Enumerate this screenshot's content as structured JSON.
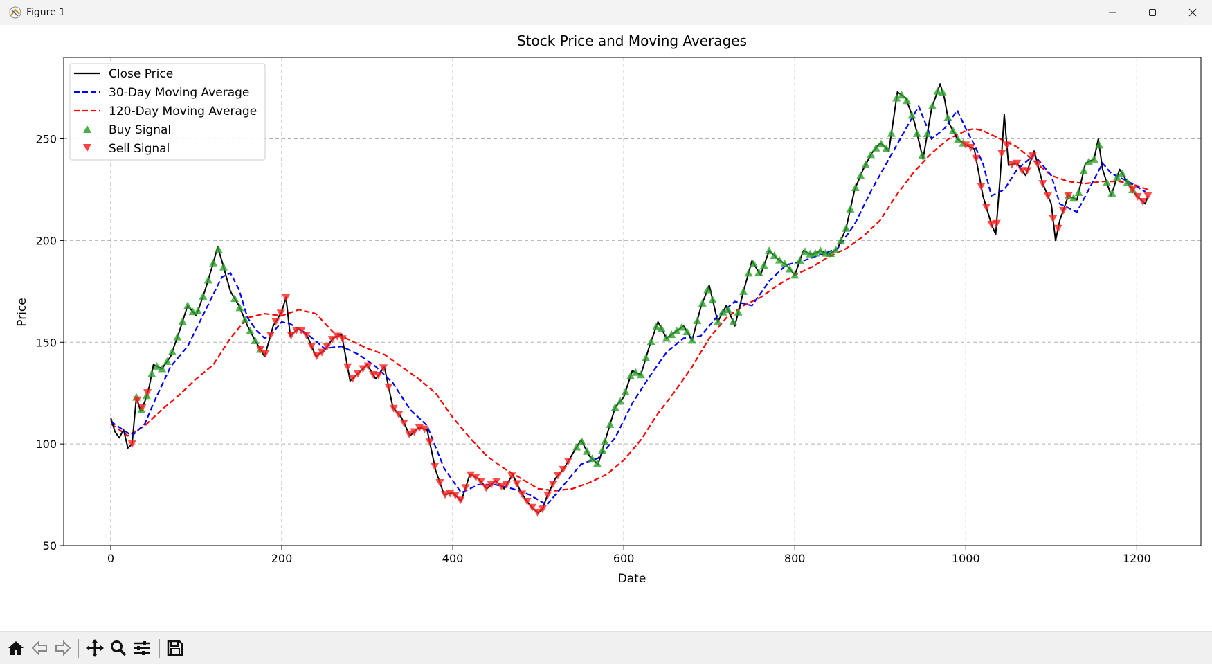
{
  "window": {
    "title": "Figure 1",
    "icons": [
      "app-icon",
      "minimize-icon",
      "maximize-icon",
      "close-icon"
    ]
  },
  "toolbar": {
    "buttons": [
      "home-icon",
      "back-icon",
      "forward-icon",
      "pan-icon",
      "zoom-icon",
      "configure-icon",
      "save-icon"
    ]
  },
  "chart_data": {
    "type": "line",
    "title": "Stock Price and Moving Averages",
    "xlabel": "Date",
    "ylabel": "Price",
    "xlim": [
      -55,
      1275
    ],
    "ylim": [
      50,
      290
    ],
    "xticks": [
      0,
      200,
      400,
      600,
      800,
      1000,
      1200
    ],
    "yticks": [
      50,
      100,
      150,
      200,
      250
    ],
    "xtick_labels": [
      "0",
      "200",
      "400",
      "600",
      "800",
      "1000",
      "1200"
    ],
    "ytick_labels": [
      "50",
      "100",
      "150",
      "200",
      "250"
    ],
    "grid": true,
    "legend_location": "upper left",
    "legend": [
      "Close Price",
      "30-Day Moving Average",
      "120-Day Moving Average",
      "Buy Signal",
      "Sell Signal"
    ],
    "colors": {
      "close": "#000000",
      "ma30": "#0000ff",
      "ma120": "#ff0000",
      "buy": "#2ca02c",
      "sell": "#ff2020"
    },
    "close_price": {
      "x": [
        0,
        5,
        10,
        15,
        20,
        25,
        30,
        35,
        40,
        45,
        50,
        60,
        70,
        80,
        90,
        100,
        110,
        120,
        125,
        130,
        140,
        150,
        160,
        170,
        180,
        190,
        200,
        205,
        210,
        220,
        230,
        240,
        250,
        260,
        270,
        280,
        290,
        300,
        310,
        320,
        330,
        340,
        350,
        360,
        370,
        380,
        390,
        400,
        410,
        420,
        430,
        440,
        450,
        460,
        470,
        480,
        490,
        500,
        505,
        510,
        520,
        530,
        540,
        550,
        560,
        570,
        580,
        590,
        600,
        610,
        620,
        630,
        640,
        650,
        660,
        670,
        680,
        690,
        700,
        710,
        720,
        730,
        740,
        750,
        760,
        770,
        780,
        790,
        800,
        810,
        820,
        830,
        840,
        850,
        860,
        870,
        880,
        890,
        900,
        910,
        920,
        930,
        940,
        950,
        960,
        970,
        975,
        980,
        990,
        1000,
        1010,
        1020,
        1030,
        1035,
        1040,
        1045,
        1050,
        1060,
        1070,
        1080,
        1090,
        1100,
        1105,
        1110,
        1120,
        1130,
        1140,
        1150,
        1155,
        1160,
        1170,
        1180,
        1190,
        1200,
        1210,
        1213
      ],
      "y": [
        113,
        106,
        103,
        107,
        98,
        100,
        123,
        116,
        121,
        128,
        139,
        137,
        143,
        155,
        168,
        163,
        175,
        189,
        197,
        190,
        175,
        168,
        158,
        150,
        143,
        158,
        165,
        172,
        153,
        157,
        153,
        143,
        146,
        152,
        154,
        131,
        135,
        139,
        132,
        138,
        118,
        113,
        104,
        108,
        107,
        87,
        75,
        76,
        72,
        85,
        83,
        78,
        82,
        78,
        85,
        76,
        70,
        66,
        68,
        74,
        83,
        88,
        95,
        102,
        94,
        90,
        104,
        118,
        123,
        136,
        134,
        148,
        160,
        152,
        155,
        158,
        151,
        167,
        178,
        160,
        168,
        158,
        175,
        190,
        183,
        195,
        191,
        188,
        183,
        195,
        193,
        195,
        193,
        196,
        206,
        225,
        235,
        243,
        248,
        244,
        273,
        270,
        258,
        240,
        265,
        277,
        270,
        258,
        250,
        247,
        245,
        222,
        208,
        203,
        230,
        262,
        237,
        238,
        232,
        244,
        228,
        218,
        200,
        210,
        222,
        220,
        238,
        240,
        250,
        235,
        222,
        235,
        228,
        222,
        218,
        222
      ]
    },
    "ma30": {
      "x": [
        0,
        25,
        40,
        50,
        70,
        90,
        110,
        130,
        140,
        150,
        160,
        170,
        180,
        190,
        200,
        210,
        230,
        250,
        270,
        290,
        310,
        330,
        350,
        370,
        390,
        410,
        430,
        450,
        470,
        490,
        510,
        530,
        550,
        570,
        590,
        610,
        630,
        650,
        670,
        690,
        710,
        730,
        750,
        770,
        790,
        810,
        830,
        850,
        870,
        890,
        910,
        930,
        945,
        960,
        975,
        990,
        1000,
        1010,
        1020,
        1030,
        1045,
        1060,
        1080,
        1100,
        1110,
        1130,
        1150,
        1160,
        1170,
        1190,
        1210
      ],
      "y": [
        111,
        104,
        110,
        120,
        138,
        148,
        165,
        182,
        184,
        176,
        162,
        156,
        152,
        155,
        160,
        159,
        154,
        147,
        148,
        144,
        138,
        130,
        117,
        109,
        88,
        76,
        80,
        80,
        78,
        75,
        70,
        80,
        90,
        93,
        103,
        120,
        133,
        145,
        152,
        153,
        163,
        170,
        168,
        180,
        188,
        190,
        193,
        196,
        208,
        225,
        240,
        255,
        266,
        250,
        255,
        264,
        255,
        247,
        238,
        222,
        225,
        235,
        242,
        232,
        218,
        214,
        230,
        238,
        233,
        229,
        224
      ]
    },
    "ma120": {
      "x": [
        0,
        20,
        40,
        60,
        80,
        100,
        120,
        140,
        160,
        180,
        200,
        220,
        240,
        260,
        280,
        300,
        320,
        340,
        360,
        380,
        400,
        420,
        440,
        460,
        480,
        500,
        520,
        540,
        560,
        580,
        600,
        620,
        640,
        660,
        680,
        700,
        720,
        740,
        760,
        780,
        800,
        820,
        840,
        860,
        880,
        900,
        920,
        940,
        960,
        980,
        1000,
        1010,
        1020,
        1040,
        1060,
        1080,
        1100,
        1120,
        1140,
        1160,
        1180,
        1200,
        1213
      ],
      "y": [
        110,
        104,
        109,
        117,
        124,
        132,
        139,
        152,
        162,
        164,
        163,
        166,
        164,
        155,
        151,
        147,
        144,
        138,
        132,
        125,
        113,
        103,
        94,
        88,
        83,
        78,
        77,
        78,
        81,
        85,
        92,
        102,
        115,
        126,
        138,
        152,
        162,
        168,
        172,
        178,
        183,
        187,
        192,
        196,
        202,
        210,
        223,
        234,
        243,
        250,
        254,
        255,
        254,
        250,
        246,
        239,
        232,
        229,
        228,
        229,
        229,
        227,
        225
      ]
    },
    "buy_signals": {
      "x_ranges": [
        [
          30,
          135
        ],
        [
          145,
          180
        ],
        [
          545,
          575
        ],
        [
          578,
          860
        ],
        [
          865,
          1000
        ],
        [
          1120,
          1160
        ],
        [
          1165,
          1200
        ]
      ],
      "note_units": "signals plotted on close price"
    },
    "sell_signals": {
      "x_ranges": [
        [
          25,
          45
        ],
        [
          175,
          540
        ],
        [
          1000,
          1120
        ],
        [
          1195,
          1213
        ]
      ]
    }
  }
}
